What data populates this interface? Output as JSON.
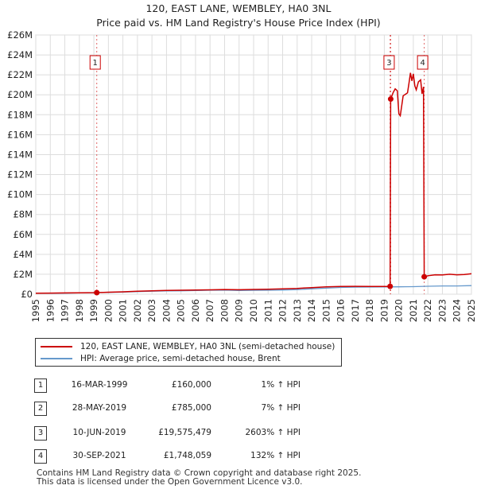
{
  "title_line1": "120, EAST LANE, WEMBLEY, HA0 3NL",
  "title_line2": "Price paid vs. HM Land Registry's House Price Index (HPI)",
  "legend": {
    "property_label": "120, EAST LANE, WEMBLEY, HA0 3NL (semi-detached house)",
    "hpi_label": "HPI: Average price, semi-detached house, Brent"
  },
  "colors": {
    "property": "#cc0000",
    "hpi": "#6699cc",
    "grid": "#dddddd",
    "marker_line": "#cc0000"
  },
  "sales": [
    {
      "num": "1",
      "date": "16-MAR-1999",
      "price": "£160,000",
      "hpi": "1% ↑ HPI"
    },
    {
      "num": "2",
      "date": "28-MAY-2019",
      "price": "£785,000",
      "hpi": "7% ↑ HPI"
    },
    {
      "num": "3",
      "date": "10-JUN-2019",
      "price": "£19,575,479",
      "hpi": "2603% ↑ HPI"
    },
    {
      "num": "4",
      "date": "30-SEP-2021",
      "price": "£1,748,059",
      "hpi": "132% ↑ HPI"
    }
  ],
  "footer_line1": "Contains HM Land Registry data © Crown copyright and database right 2025.",
  "footer_line2": "This data is licensed under the Open Government Licence v3.0.",
  "chart_data": {
    "type": "line",
    "xlim": [
      1995,
      2025
    ],
    "ylim": [
      0,
      26000000
    ],
    "y_ticks": [
      0,
      2000000,
      4000000,
      6000000,
      8000000,
      10000000,
      12000000,
      14000000,
      16000000,
      18000000,
      20000000,
      22000000,
      24000000,
      26000000
    ],
    "y_tick_labels": [
      "£0",
      "£2M",
      "£4M",
      "£6M",
      "£8M",
      "£10M",
      "£12M",
      "£14M",
      "£16M",
      "£18M",
      "£20M",
      "£22M",
      "£24M",
      "£26M"
    ],
    "x_ticks": [
      1995,
      1996,
      1997,
      1998,
      1999,
      2000,
      2001,
      2002,
      2003,
      2004,
      2005,
      2006,
      2007,
      2008,
      2009,
      2010,
      2011,
      2012,
      2013,
      2014,
      2015,
      2016,
      2017,
      2018,
      2019,
      2020,
      2021,
      2022,
      2023,
      2024,
      2025
    ],
    "x_tick_labels": [
      "1995",
      "1996",
      "1997",
      "1998",
      "1999",
      "2000",
      "2001",
      "2002",
      "2003",
      "2004",
      "2005",
      "2006",
      "2007",
      "2008",
      "2009",
      "2010",
      "2011",
      "2012",
      "2013",
      "2014",
      "2015",
      "2016",
      "2017",
      "2018",
      "2019",
      "2020",
      "2021",
      "2022",
      "2023",
      "2024",
      "2025"
    ],
    "grid": true,
    "series": [
      {
        "name": "120, EAST LANE, WEMBLEY, HA0 3NL (semi-detached house)",
        "x": [
          1995.0,
          1996.0,
          1997.0,
          1998.0,
          1999.2,
          2000.0,
          2001.0,
          2002.0,
          2003.0,
          2004.0,
          2005.0,
          2006.0,
          2007.0,
          2008.0,
          2009.0,
          2010.0,
          2011.0,
          2012.0,
          2013.0,
          2014.0,
          2015.0,
          2016.0,
          2017.0,
          2018.0,
          2019.0,
          2019.4,
          2019.44,
          2019.6,
          2019.75,
          2019.9,
          2020.0,
          2020.1,
          2020.3,
          2020.5,
          2020.6,
          2020.7,
          2020.8,
          2020.9,
          2021.0,
          2021.1,
          2021.2,
          2021.35,
          2021.5,
          2021.6,
          2021.7,
          2021.75,
          2022.0,
          2022.5,
          2023.0,
          2023.5,
          2024.0,
          2024.5,
          2025.0
        ],
        "values": [
          100000,
          110000,
          125000,
          140000,
          160000,
          200000,
          240000,
          300000,
          340000,
          380000,
          400000,
          420000,
          440000,
          470000,
          450000,
          480000,
          500000,
          540000,
          580000,
          660000,
          730000,
          770000,
          790000,
          780000,
          770000,
          785000,
          19575479,
          20200000,
          20600000,
          20400000,
          18100000,
          17900000,
          19900000,
          20100000,
          20200000,
          21200000,
          22200000,
          21400000,
          22100000,
          20900000,
          20500000,
          21300000,
          21500000,
          20100000,
          20800000,
          1748059,
          1850000,
          1950000,
          1930000,
          2000000,
          1950000,
          1980000,
          2050000
        ]
      },
      {
        "name": "HPI: Average price, semi-detached house, Brent",
        "x": [
          1995.0,
          1996.0,
          1997.0,
          1998.0,
          1999.0,
          2000.0,
          2001.0,
          2002.0,
          2003.0,
          2004.0,
          2005.0,
          2006.0,
          2007.0,
          2008.0,
          2009.0,
          2010.0,
          2011.0,
          2012.0,
          2013.0,
          2014.0,
          2015.0,
          2016.0,
          2017.0,
          2018.0,
          2019.0,
          2020.0,
          2021.0,
          2022.0,
          2023.0,
          2024.0,
          2025.0
        ],
        "values": [
          90000,
          95000,
          105000,
          125000,
          150000,
          180000,
          210000,
          260000,
          300000,
          330000,
          345000,
          365000,
          400000,
          410000,
          370000,
          390000,
          400000,
          420000,
          460000,
          540000,
          610000,
          680000,
          710000,
          720000,
          730000,
          740000,
          760000,
          800000,
          830000,
          830000,
          860000
        ]
      }
    ],
    "sales": [
      {
        "label": "1",
        "x": 1999.2,
        "value": 160000
      },
      {
        "label": "2",
        "x": 2019.4,
        "value": 785000
      },
      {
        "label": "3",
        "x": 2019.44,
        "value": 19575479
      },
      {
        "label": "4",
        "x": 2021.75,
        "value": 1748059
      }
    ],
    "marker_boxes": [
      "1",
      "3",
      "4"
    ]
  }
}
